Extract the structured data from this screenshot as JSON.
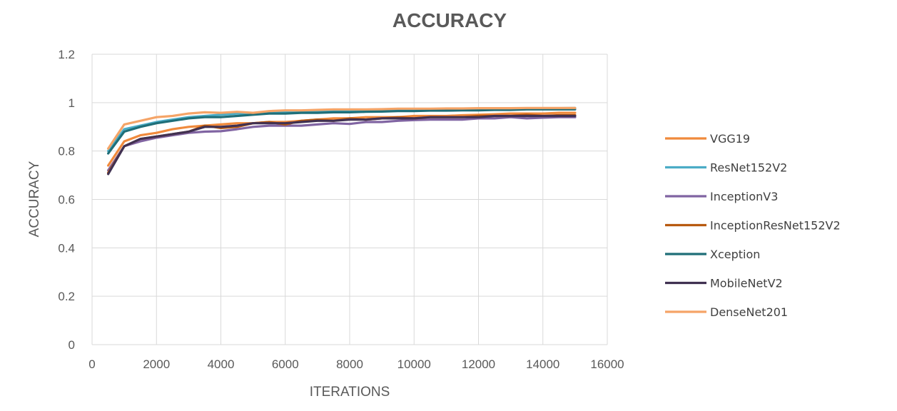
{
  "chart_data": {
    "type": "line",
    "title": "ACCURACY",
    "xlabel": "ITERATIONS",
    "ylabel": "ACCURACY",
    "xlim": [
      0,
      16000
    ],
    "ylim": [
      0,
      1.2
    ],
    "x_ticks": [
      "0",
      "2000",
      "4000",
      "6000",
      "8000",
      "10000",
      "12000",
      "14000",
      "16000"
    ],
    "y_ticks": [
      "0",
      "0.2",
      "0.4",
      "0.6",
      "0.8",
      "1",
      "1.2"
    ],
    "grid": true,
    "legend_position": "right",
    "x": [
      500,
      1000,
      1500,
      2000,
      2500,
      3000,
      3500,
      4000,
      4500,
      5000,
      5500,
      6000,
      6500,
      7000,
      7500,
      8000,
      8500,
      9000,
      9500,
      10000,
      10500,
      11000,
      11500,
      12000,
      12500,
      13000,
      13500,
      14000,
      14500,
      15000
    ],
    "series": [
      {
        "name": "VGG19",
        "color": "#F08A3C",
        "values": [
          0.74,
          0.84,
          0.865,
          0.875,
          0.89,
          0.9,
          0.905,
          0.91,
          0.915,
          0.915,
          0.92,
          0.92,
          0.925,
          0.93,
          0.935,
          0.935,
          0.94,
          0.94,
          0.94,
          0.945,
          0.945,
          0.945,
          0.948,
          0.95,
          0.952,
          0.955,
          0.955,
          0.955,
          0.958,
          0.958
        ]
      },
      {
        "name": "ResNet152V2",
        "color": "#4BACC6",
        "values": [
          0.8,
          0.89,
          0.905,
          0.92,
          0.93,
          0.94,
          0.945,
          0.95,
          0.955,
          0.955,
          0.958,
          0.96,
          0.962,
          0.962,
          0.965,
          0.965,
          0.967,
          0.968,
          0.968,
          0.97,
          0.97,
          0.972,
          0.972,
          0.973,
          0.973,
          0.975,
          0.975,
          0.976,
          0.977,
          0.978
        ]
      },
      {
        "name": "InceptionV3",
        "color": "#8064A2",
        "values": [
          0.72,
          0.82,
          0.84,
          0.855,
          0.865,
          0.875,
          0.88,
          0.882,
          0.89,
          0.9,
          0.905,
          0.905,
          0.905,
          0.91,
          0.915,
          0.912,
          0.92,
          0.92,
          0.925,
          0.928,
          0.93,
          0.93,
          0.93,
          0.935,
          0.935,
          0.94,
          0.935,
          0.938,
          0.94,
          0.94
        ]
      },
      {
        "name": "InceptionResNet152V2",
        "color": "#B85A10",
        "values": [
          0.71,
          0.82,
          0.85,
          0.86,
          0.87,
          0.88,
          0.905,
          0.895,
          0.9,
          0.915,
          0.92,
          0.91,
          0.925,
          0.93,
          0.925,
          0.935,
          0.93,
          0.935,
          0.94,
          0.935,
          0.94,
          0.94,
          0.94,
          0.945,
          0.945,
          0.945,
          0.95,
          0.945,
          0.948,
          0.948
        ]
      },
      {
        "name": "Xception",
        "color": "#1F6E78",
        "values": [
          0.79,
          0.88,
          0.9,
          0.915,
          0.925,
          0.935,
          0.94,
          0.94,
          0.945,
          0.95,
          0.955,
          0.955,
          0.958,
          0.958,
          0.96,
          0.96,
          0.962,
          0.963,
          0.965,
          0.965,
          0.967,
          0.967,
          0.968,
          0.968,
          0.97,
          0.97,
          0.972,
          0.972,
          0.972,
          0.972
        ]
      },
      {
        "name": "MobileNetV2",
        "color": "#403152",
        "values": [
          0.705,
          0.82,
          0.85,
          0.86,
          0.87,
          0.88,
          0.9,
          0.9,
          0.905,
          0.915,
          0.915,
          0.915,
          0.92,
          0.925,
          0.925,
          0.93,
          0.93,
          0.935,
          0.935,
          0.935,
          0.94,
          0.94,
          0.94,
          0.94,
          0.945,
          0.945,
          0.945,
          0.945,
          0.945,
          0.945
        ]
      },
      {
        "name": "DenseNet201",
        "color": "#F5A467",
        "values": [
          0.81,
          0.91,
          0.925,
          0.94,
          0.945,
          0.955,
          0.96,
          0.958,
          0.962,
          0.958,
          0.965,
          0.968,
          0.968,
          0.97,
          0.972,
          0.972,
          0.972,
          0.973,
          0.975,
          0.975,
          0.975,
          0.976,
          0.976,
          0.977,
          0.977,
          0.977,
          0.978,
          0.978,
          0.978,
          0.978
        ]
      }
    ]
  }
}
